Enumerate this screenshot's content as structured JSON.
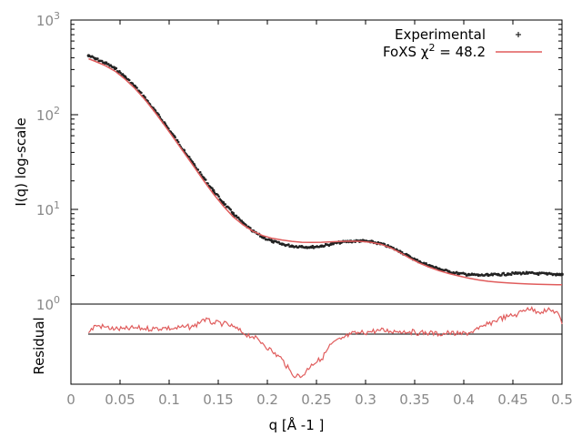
{
  "chart_data": {
    "type": "scatter",
    "title": "",
    "xlabel": "q [Å -1 ]",
    "ylabel": "I(q) log-scale",
    "residual_ylabel": "Residual",
    "x_ticks": [
      "0",
      "0.05",
      "0.1",
      "0.15",
      "0.2",
      "0.25",
      "0.3",
      "0.35",
      "0.4",
      "0.45",
      "0.5"
    ],
    "y_ticks": [
      {
        "base": "10",
        "exp": "0"
      },
      {
        "base": "10",
        "exp": "1"
      },
      {
        "base": "10",
        "exp": "2"
      },
      {
        "base": "10",
        "exp": "3"
      }
    ],
    "xlim": [
      0,
      0.5
    ],
    "ylim": [
      1,
      1000
    ],
    "y_scale": "log",
    "grid": false,
    "legend_position": "top-right",
    "series": [
      {
        "name": "Experimental",
        "style": "points",
        "color": "#222222",
        "x": [
          0.018,
          0.025,
          0.035,
          0.045,
          0.055,
          0.065,
          0.075,
          0.085,
          0.095,
          0.105,
          0.115,
          0.125,
          0.135,
          0.145,
          0.155,
          0.165,
          0.175,
          0.185,
          0.195,
          0.205,
          0.215,
          0.225,
          0.235,
          0.245,
          0.255,
          0.265,
          0.275,
          0.285,
          0.295,
          0.305,
          0.315,
          0.325,
          0.335,
          0.345,
          0.355,
          0.365,
          0.375,
          0.385,
          0.395,
          0.405,
          0.415,
          0.425,
          0.435,
          0.445,
          0.455,
          0.465,
          0.475,
          0.485,
          0.495,
          0.5
        ],
        "y": [
          420,
          390,
          352,
          308,
          252,
          200,
          152,
          112,
          82,
          59,
          42,
          30,
          21.5,
          15.8,
          11.8,
          9.1,
          7.2,
          5.9,
          5.1,
          4.6,
          4.3,
          4.1,
          4.05,
          4.0,
          4.1,
          4.3,
          4.5,
          4.6,
          4.65,
          4.55,
          4.35,
          4.0,
          3.6,
          3.15,
          2.8,
          2.55,
          2.35,
          2.2,
          2.1,
          2.05,
          2.02,
          2.02,
          2.05,
          2.08,
          2.12,
          2.12,
          2.1,
          2.08,
          2.06,
          2.06
        ]
      },
      {
        "name": "FoXS χ 2 = 48.2",
        "legend_text": "FoXS χ",
        "legend_sup": "2",
        "legend_suffix": " = 48.2",
        "style": "line",
        "color": "#e05c5c",
        "x": [
          0.018,
          0.025,
          0.035,
          0.045,
          0.055,
          0.065,
          0.075,
          0.085,
          0.095,
          0.105,
          0.115,
          0.125,
          0.135,
          0.145,
          0.155,
          0.165,
          0.175,
          0.185,
          0.195,
          0.205,
          0.215,
          0.225,
          0.235,
          0.245,
          0.255,
          0.265,
          0.275,
          0.285,
          0.295,
          0.305,
          0.315,
          0.325,
          0.335,
          0.345,
          0.355,
          0.365,
          0.375,
          0.385,
          0.395,
          0.405,
          0.415,
          0.425,
          0.435,
          0.445,
          0.455,
          0.465,
          0.475,
          0.485,
          0.495,
          0.5
        ],
        "y": [
          390,
          365,
          330,
          288,
          238,
          190,
          146,
          108,
          78,
          56,
          40,
          28.5,
          20.2,
          14.6,
          10.9,
          8.4,
          6.9,
          5.9,
          5.3,
          4.95,
          4.75,
          4.6,
          4.5,
          4.48,
          4.5,
          4.55,
          4.6,
          4.62,
          4.6,
          4.5,
          4.3,
          3.95,
          3.5,
          3.05,
          2.7,
          2.45,
          2.25,
          2.1,
          1.98,
          1.88,
          1.8,
          1.74,
          1.7,
          1.67,
          1.65,
          1.63,
          1.62,
          1.61,
          1.6,
          1.6
        ]
      }
    ],
    "residual": {
      "color": "#e05c5c",
      "x": [
        0.018,
        0.025,
        0.035,
        0.045,
        0.055,
        0.065,
        0.075,
        0.085,
        0.095,
        0.105,
        0.115,
        0.125,
        0.135,
        0.145,
        0.155,
        0.165,
        0.175,
        0.185,
        0.195,
        0.205,
        0.215,
        0.225,
        0.235,
        0.245,
        0.255,
        0.265,
        0.275,
        0.285,
        0.295,
        0.305,
        0.315,
        0.325,
        0.335,
        0.345,
        0.355,
        0.365,
        0.375,
        0.385,
        0.395,
        0.405,
        0.415,
        0.425,
        0.435,
        0.445,
        0.455,
        0.465,
        0.475,
        0.485,
        0.495,
        0.5
      ],
      "y": [
        0.05,
        0.35,
        0.28,
        0.2,
        0.2,
        0.25,
        0.22,
        0.22,
        0.25,
        0.22,
        0.28,
        0.3,
        0.6,
        0.45,
        0.42,
        0.3,
        0.05,
        -0.1,
        -0.35,
        -0.7,
        -1.0,
        -1.6,
        -1.7,
        -1.2,
        -1.0,
        -0.4,
        -0.2,
        0.0,
        0.05,
        0.1,
        0.15,
        0.12,
        0.12,
        0.1,
        0.05,
        0.05,
        0.0,
        0.05,
        0.0,
        0.05,
        0.2,
        0.4,
        0.6,
        0.7,
        0.8,
        1.05,
        0.9,
        0.95,
        0.9,
        0.4
      ],
      "ylim": [
        -2,
        1.2
      ],
      "zero_line": 0
    }
  }
}
